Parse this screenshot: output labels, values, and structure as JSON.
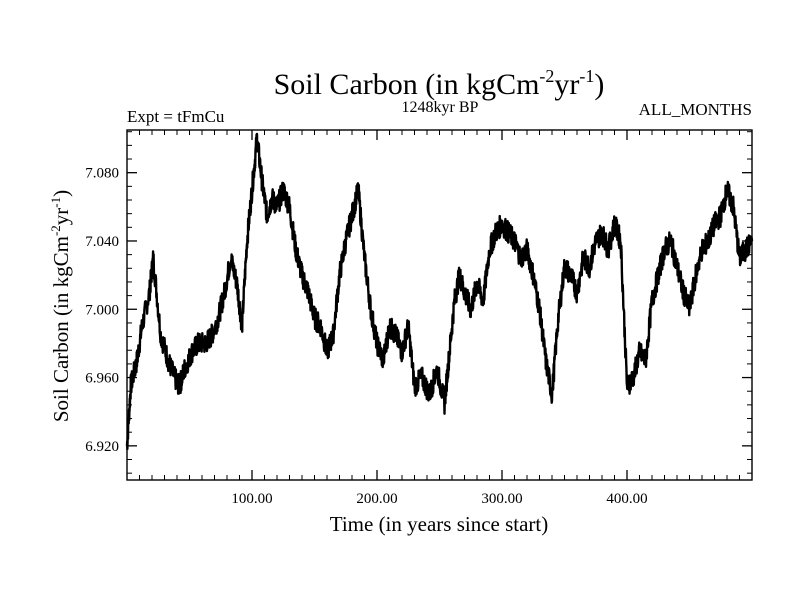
{
  "chart_data": {
    "type": "line",
    "title_main": "Soil Carbon (in kgCm",
    "title_exp1": "-2",
    "title_mid": "yr",
    "title_exp2": "-1",
    "title_end": ")",
    "subtitle_left": "Expt = tFmCu",
    "subtitle_center": "1248kyr BP",
    "subtitle_right": "ALL_MONTHS",
    "xlabel": "Time (in years since start)",
    "ylabel_main": "Soil Carbon (in kgCm",
    "ylabel_exp1": "-2",
    "ylabel_mid": "yr",
    "ylabel_exp2": "-1",
    "ylabel_end": ")",
    "xlim": [
      0,
      500
    ],
    "ylim": [
      6.9,
      7.105
    ],
    "x_ticks": [
      100,
      200,
      300,
      400
    ],
    "x_tick_labels": [
      "100.00",
      "200.00",
      "300.00",
      "400.00"
    ],
    "y_ticks": [
      6.92,
      6.96,
      7.0,
      7.04,
      7.08
    ],
    "y_tick_labels": [
      "6.920",
      "6.960",
      "7.000",
      "7.040",
      "7.080"
    ],
    "series": [
      {
        "name": "Soil Carbon",
        "x": [
          0,
          3,
          8,
          12,
          18,
          21,
          27,
          33,
          38,
          42,
          46,
          52,
          57,
          63,
          68,
          73,
          78,
          83,
          88,
          92,
          96,
          100,
          104,
          108,
          112,
          116,
          120,
          125,
          130,
          135,
          140,
          145,
          150,
          155,
          160,
          165,
          170,
          175,
          180,
          185,
          190,
          195,
          200,
          205,
          210,
          215,
          220,
          225,
          230,
          236,
          242,
          248,
          254,
          258,
          262,
          266,
          270,
          275,
          280,
          285,
          290,
          295,
          300,
          305,
          310,
          315,
          320,
          325,
          330,
          335,
          340,
          345,
          350,
          355,
          360,
          365,
          370,
          375,
          380,
          385,
          390,
          395,
          400,
          405,
          410,
          415,
          420,
          425,
          430,
          435,
          440,
          445,
          450,
          455,
          460,
          465,
          470,
          475,
          480,
          485,
          490,
          495,
          500
        ],
        "values": [
          6.92,
          6.955,
          6.97,
          6.99,
          7.01,
          7.03,
          6.985,
          6.97,
          6.96,
          6.955,
          6.965,
          6.975,
          6.98,
          6.98,
          6.985,
          6.995,
          7.01,
          7.03,
          7.015,
          6.99,
          7.04,
          7.07,
          7.1,
          7.075,
          7.055,
          7.065,
          7.06,
          7.07,
          7.06,
          7.035,
          7.02,
          7.01,
          6.995,
          6.99,
          6.975,
          6.985,
          7.02,
          7.04,
          7.055,
          7.07,
          7.03,
          7.0,
          6.98,
          6.97,
          6.99,
          6.985,
          6.975,
          6.99,
          6.955,
          6.96,
          6.95,
          6.965,
          6.945,
          6.975,
          7.005,
          7.02,
          7.01,
          7.0,
          7.015,
          7.005,
          7.035,
          7.045,
          7.05,
          7.045,
          7.04,
          7.03,
          7.035,
          7.02,
          7.0,
          6.97,
          6.95,
          6.995,
          7.025,
          7.02,
          7.01,
          7.03,
          7.025,
          7.04,
          7.045,
          7.035,
          7.05,
          7.04,
          6.955,
          6.96,
          6.975,
          6.97,
          7.005,
          7.02,
          7.035,
          7.04,
          7.025,
          7.01,
          7.0,
          7.02,
          7.035,
          7.04,
          7.05,
          7.055,
          7.07,
          7.06,
          7.03,
          7.035,
          7.04
        ]
      }
    ]
  }
}
